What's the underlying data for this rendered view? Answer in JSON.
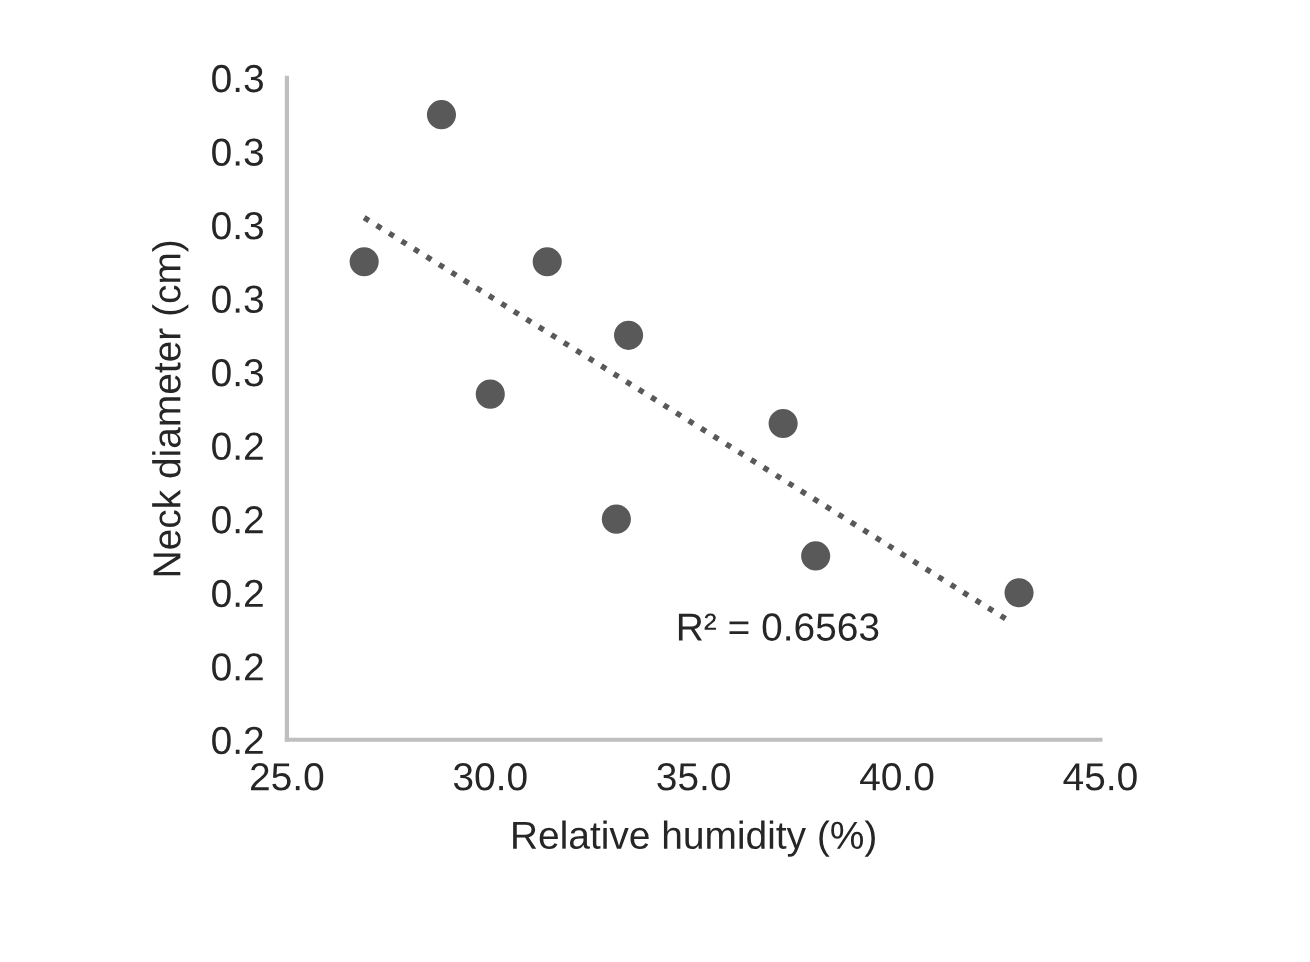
{
  "chart_data": {
    "type": "scatter",
    "xlabel": "Relative humidity (%)",
    "ylabel": "Neck diameter (cm)",
    "series": [
      {
        "color": "#595959",
        "marker": "circle",
        "x": [
          26.9,
          28.8,
          30.0,
          31.4,
          33.4,
          33.1,
          37.2,
          38.0,
          43.0
        ],
        "values": [
          0.265,
          0.285,
          0.247,
          0.265,
          0.255,
          0.23,
          0.243,
          0.225,
          0.22
        ]
      },
      {
        "type": "line",
        "color": "#595959",
        "line_style": "dotted",
        "x": [
          26.9,
          42.8
        ],
        "values": [
          0.271,
          0.216
        ]
      }
    ],
    "xlim": [
      25,
      45
    ],
    "xticks": [
      {
        "value": 25,
        "label": "25.0"
      },
      {
        "value": 30,
        "label": "30.0"
      },
      {
        "value": 35,
        "label": "35.0"
      },
      {
        "value": 40,
        "label": "40.0"
      },
      {
        "value": 45,
        "label": "45.0"
      }
    ],
    "ylim": [
      0.2,
      0.29
    ],
    "yticks": [
      {
        "value": 0.2,
        "label": "0.2"
      },
      {
        "value": 0.21,
        "label": "0.2"
      },
      {
        "value": 0.22,
        "label": "0.2"
      },
      {
        "value": 0.23,
        "label": "0.2"
      },
      {
        "value": 0.24,
        "label": "0.2"
      },
      {
        "value": 0.25,
        "label": "0.3"
      },
      {
        "value": 0.26,
        "label": "0.3"
      },
      {
        "value": 0.27,
        "label": "0.3"
      },
      {
        "value": 0.28,
        "label": "0.3"
      },
      {
        "value": 0.29,
        "label": "0.3"
      }
    ],
    "annotations": [
      "R² = 0.6563"
    ],
    "grid": false,
    "legend": false
  }
}
